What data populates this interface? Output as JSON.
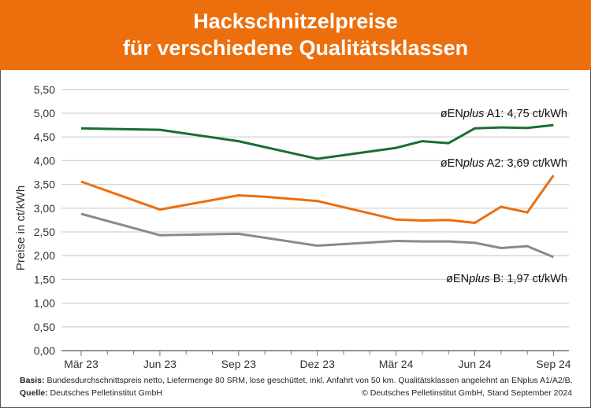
{
  "header": {
    "title_line1": "Hackschnitzelpreise",
    "title_line2": "für verschiedene Qualitätsklassen",
    "background": "#ec6e0c"
  },
  "chart_data": {
    "type": "line",
    "ylabel": "Preise in ct/kWh",
    "ylim": [
      0,
      5.5
    ],
    "yticks": [
      "0,00",
      "0,50",
      "1,00",
      "1,50",
      "2,00",
      "2,50",
      "3,00",
      "3,50",
      "4,00",
      "4,50",
      "5,00",
      "5,50"
    ],
    "xticks": [
      "Mär 23",
      "Jun 23",
      "Sep 23",
      "Dez 23",
      "Mär 24",
      "Jun 24",
      "Sep 24"
    ],
    "grid": true,
    "series": [
      {
        "name": "A1",
        "color": "#1a6e32",
        "label_prefix": "øEN",
        "label_italic": "plus",
        "label_suffix": " A1: 4,75 ct/kWh",
        "points": [
          [
            "2023-03",
            4.68
          ],
          [
            "2023-06",
            4.65
          ],
          [
            "2023-09",
            4.41
          ],
          [
            "2023-12",
            4.04
          ],
          [
            "2024-03",
            4.27
          ],
          [
            "2024-04",
            4.41
          ],
          [
            "2024-05",
            4.37
          ],
          [
            "2024-06",
            4.68
          ],
          [
            "2024-07",
            4.7
          ],
          [
            "2024-08",
            4.69
          ],
          [
            "2024-09",
            4.75
          ]
        ]
      },
      {
        "name": "A2",
        "color": "#ec6e0c",
        "label_prefix": "øEN",
        "label_italic": "plus",
        "label_suffix": " A2: 3,69 ct/kWh",
        "points": [
          [
            "2023-03",
            3.56
          ],
          [
            "2023-06",
            2.97
          ],
          [
            "2023-09",
            3.27
          ],
          [
            "2023-10",
            3.24
          ],
          [
            "2023-12",
            3.15
          ],
          [
            "2024-03",
            2.76
          ],
          [
            "2024-04",
            2.74
          ],
          [
            "2024-05",
            2.75
          ],
          [
            "2024-06",
            2.69
          ],
          [
            "2024-07",
            3.03
          ],
          [
            "2024-08",
            2.91
          ],
          [
            "2024-09",
            3.69
          ]
        ]
      },
      {
        "name": "B",
        "color": "#8a8a8a",
        "label_prefix": "øEN",
        "label_italic": "plus",
        "label_suffix": " B: 1,97 ct/kWh",
        "points": [
          [
            "2023-03",
            2.88
          ],
          [
            "2023-06",
            2.43
          ],
          [
            "2023-09",
            2.46
          ],
          [
            "2023-12",
            2.21
          ],
          [
            "2024-03",
            2.31
          ],
          [
            "2024-04",
            2.3
          ],
          [
            "2024-05",
            2.3
          ],
          [
            "2024-06",
            2.27
          ],
          [
            "2024-07",
            2.16
          ],
          [
            "2024-08",
            2.2
          ],
          [
            "2024-09",
            1.97
          ]
        ]
      }
    ]
  },
  "footer": {
    "basis_label": "Basis:",
    "basis_text": "Bundesdurchschnittspreis netto, Liefermenge 80 SRM, lose geschüttet, inkl. Anfahrt von 50 km. Qualitätsklassen angelehnt an ENplus A1/A2/B.",
    "source_label": "Quelle:",
    "source_text": "Deutsches Pelletinstitut GmbH",
    "copyright": "© Deutsches Pelletinstitut GmbH, Stand September 2024"
  }
}
